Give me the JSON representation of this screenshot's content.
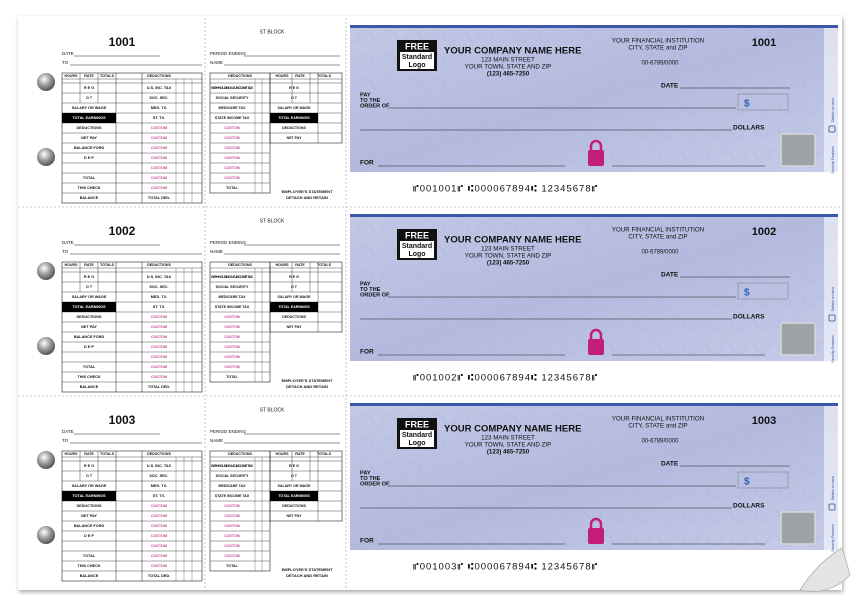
{
  "checks": [
    {
      "number": "1001",
      "micr": "⑈001001⑈ ⑆000067894⑆ 12345678⑈"
    },
    {
      "number": "1002",
      "micr": "⑈001002⑈ ⑆000067894⑆ 12345678⑈"
    },
    {
      "number": "1003",
      "micr": "⑈001003⑈ ⑆000067894⑆ 12345678⑈"
    }
  ],
  "stub": {
    "date": "DATE",
    "to": "TO",
    "headers": [
      "HOURS",
      "RATE",
      "TOTALS",
      "DEDUCTIONS"
    ],
    "rows": [
      {
        "left": "R E G",
        "right": "U.S. INC. TAX"
      },
      {
        "left": "O T",
        "right": "SOC. SEC."
      },
      {
        "left": "SALARY OR WAGE",
        "right": "MED. TX."
      },
      {
        "left": "TOTAL EARNINGS",
        "right": "ST. TX.",
        "left_fill": "#000000"
      },
      {
        "left": "DEDUCTIONS",
        "right": "CUSTOM",
        "right_color": "#c8489a"
      },
      {
        "left": "NET PAY",
        "right": "CUSTOM",
        "right_color": "#c8489a"
      },
      {
        "left": "BALANCE FORD",
        "right": "CUSTOM",
        "right_color": "#c8489a"
      },
      {
        "left": "D E P",
        "right": "CUSTOM",
        "right_color": "#c8489a"
      },
      {
        "right": "CUSTOM",
        "right_color": "#c8489a"
      },
      {
        "left": "TOTAL",
        "right": "CUSTOM",
        "right_color": "#c8489a"
      },
      {
        "left": "THIS CHECK",
        "right": "CUSTOM",
        "right_color": "#c8489a"
      },
      {
        "left": "BALANCE",
        "right": "TOTAL DED."
      }
    ]
  },
  "mid_stub": {
    "title": "ST BLOCK",
    "period": "PERIOD ENDING",
    "name": "NAME",
    "headers": [
      "DEDUCTIONS",
      "HOURS",
      "RATE",
      "TOTALS"
    ],
    "rows": [
      {
        "left": "WITHHOLDING U.S. INCOME TAX",
        "right": "R E G"
      },
      {
        "left": "SOCIAL SECURITY",
        "right": "O T"
      },
      {
        "left": "MEDICARE TAX",
        "right": "SALARY OR WAGE"
      },
      {
        "left": "STATE INCOME TAX",
        "right": "TOTAL EARNINGS",
        "right_fill": "#000000"
      },
      {
        "left": "CUSTOM",
        "left_color": "#c8489a",
        "right": "DEDUCTIONS"
      },
      {
        "left": "CUSTOM",
        "left_color": "#c8489a",
        "right": "NET PAY"
      },
      {
        "left": "CUSTOM",
        "left_color": "#c8489a"
      },
      {
        "left": "CUSTOM",
        "left_color": "#c8489a"
      },
      {
        "left": "CUSTOM",
        "left_color": "#c8489a"
      },
      {
        "left": "CUSTOM",
        "left_color": "#c8489a"
      },
      {
        "left": "TOTAL"
      }
    ],
    "footer": [
      "EMPLOYEE'S STATEMENT",
      "DETACH AND RETAIN"
    ]
  },
  "check": {
    "logo": [
      "FREE",
      "Standard",
      "Logo"
    ],
    "company": [
      "YOUR COMPANY NAME HERE",
      "123 MAIN STREET",
      "YOUR TOWN, STATE AND ZIP",
      "(123) 465-7250"
    ],
    "bank": [
      "YOUR FINANCIAL INSTITUTION",
      "CITY, STATE and ZIP"
    ],
    "routing": "00-6789/0000",
    "date": "DATE",
    "pay": [
      "PAY",
      "TO THE",
      "ORDER OF"
    ],
    "dollar_sign": "$",
    "dollars": "DOLLARS",
    "for": "FOR",
    "side": [
      "Details on back",
      "Security Features"
    ]
  }
}
